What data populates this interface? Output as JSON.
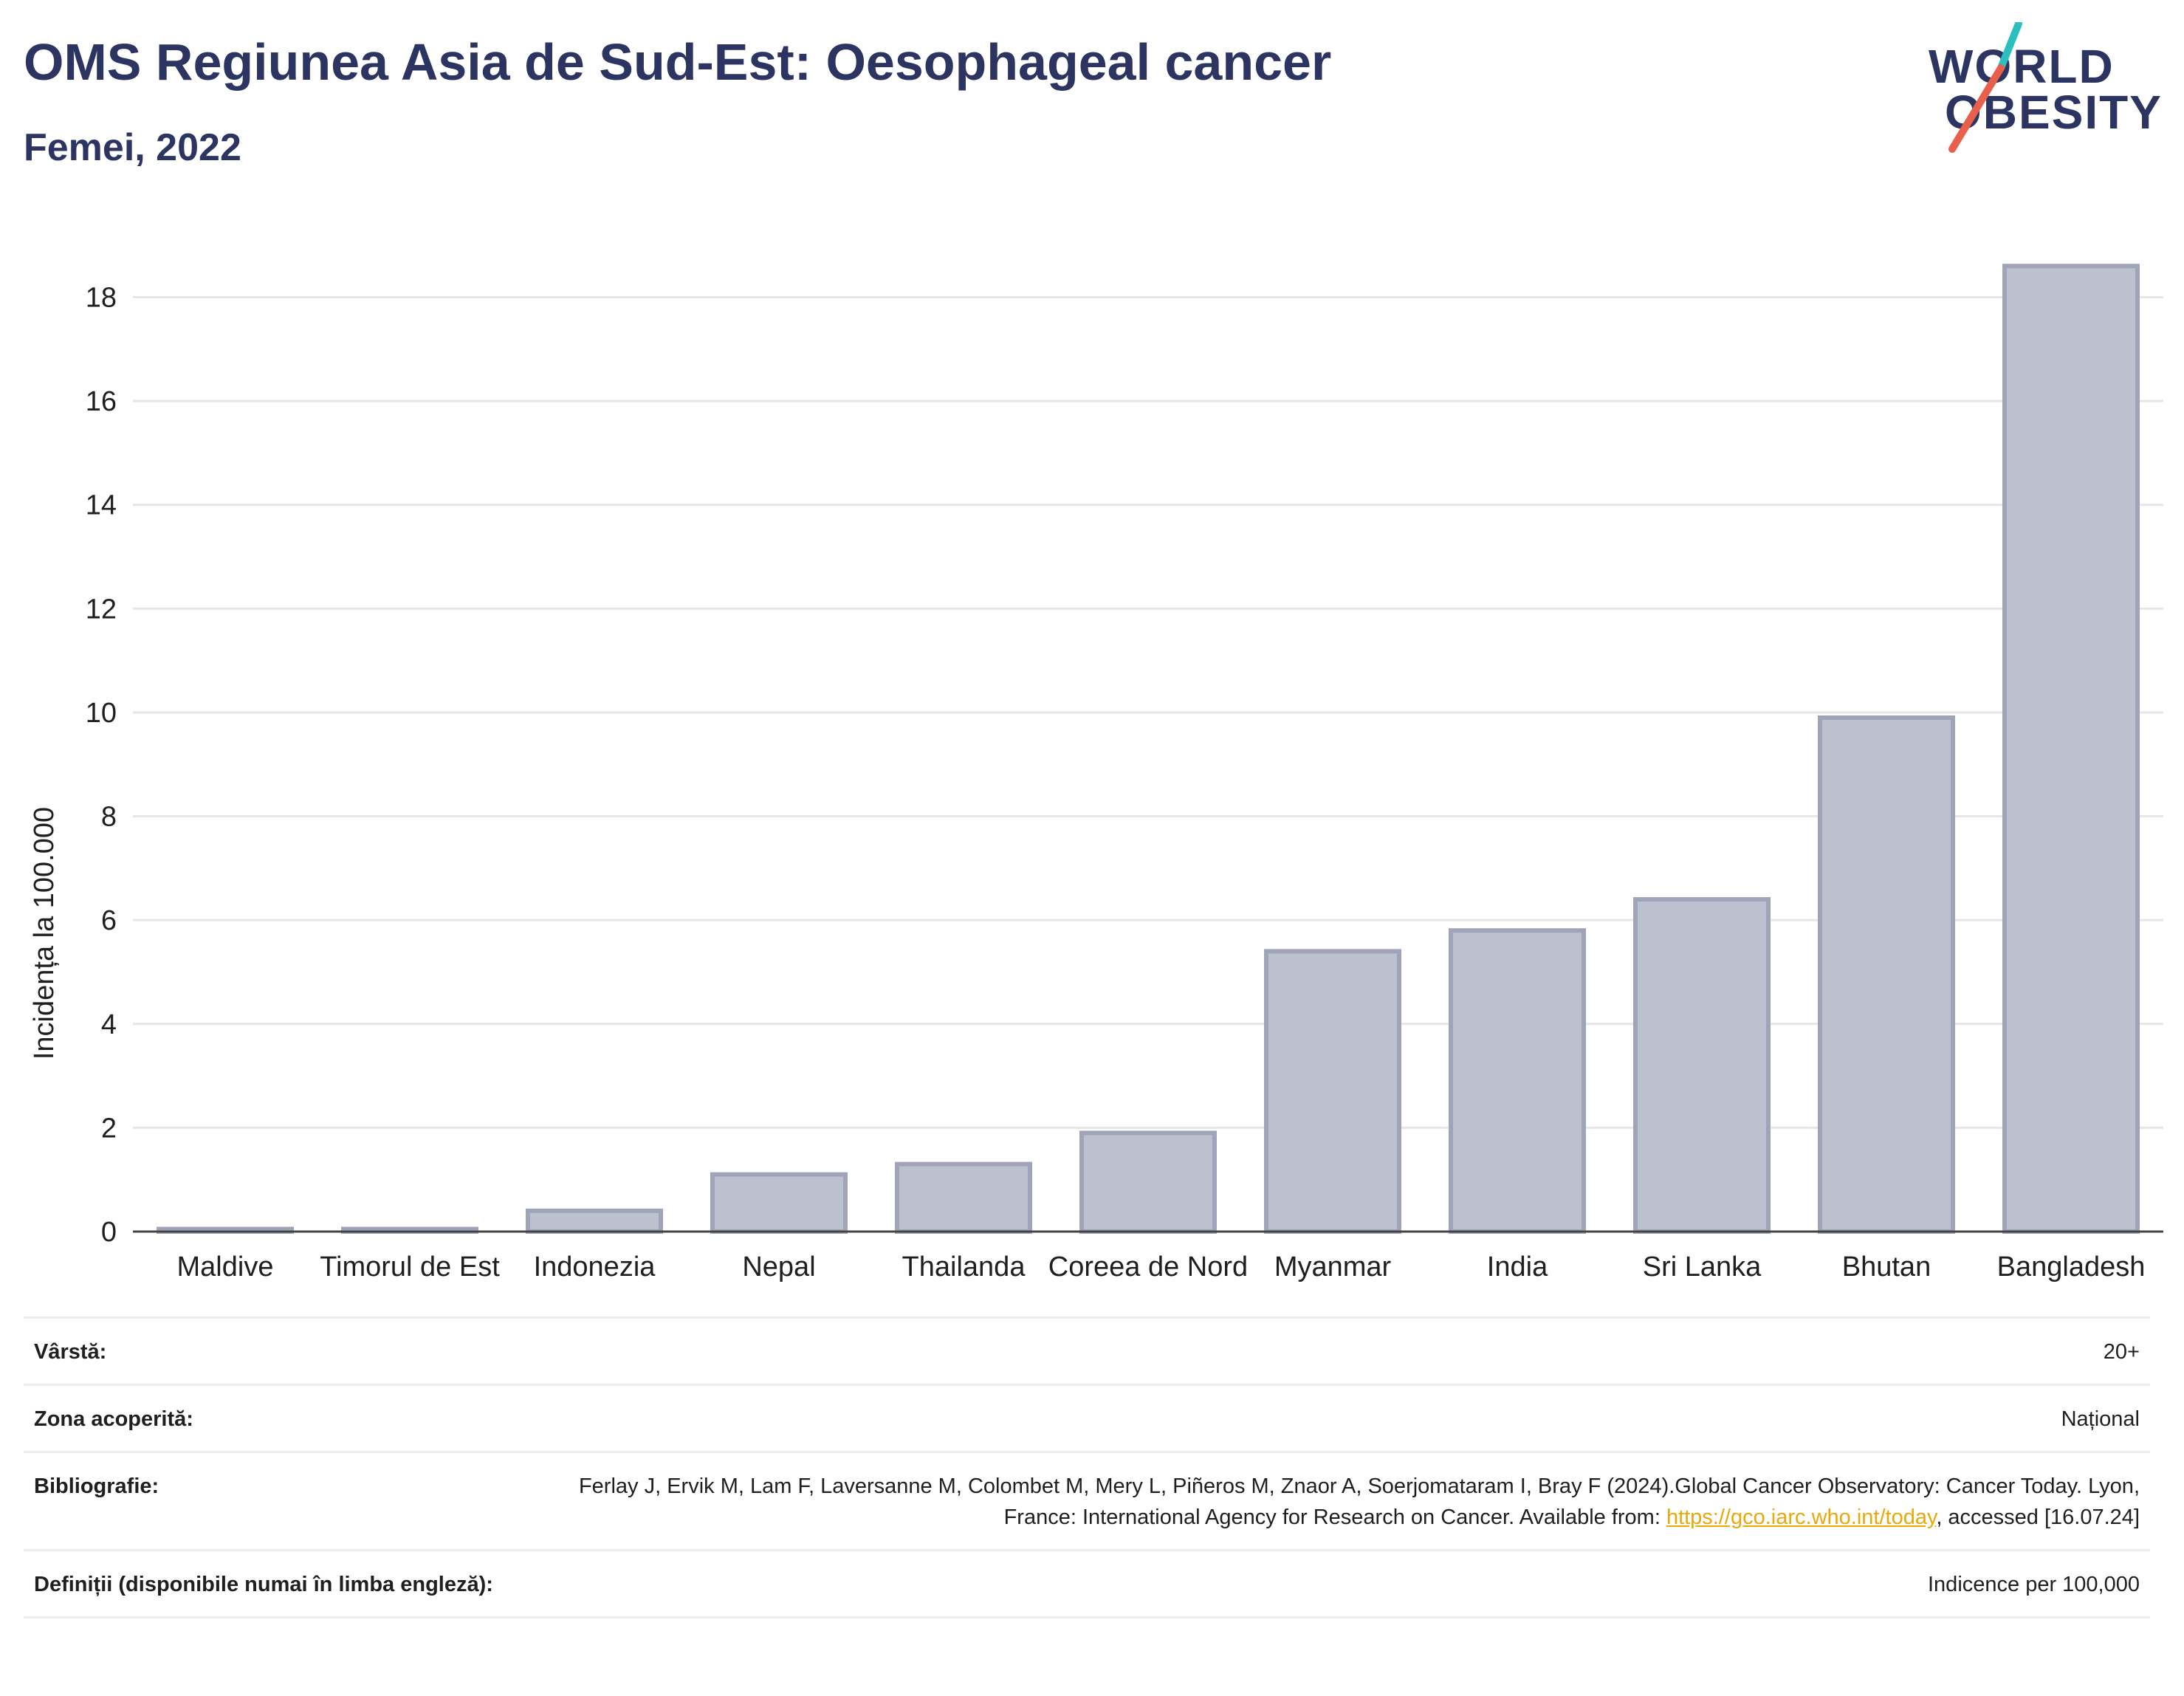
{
  "header": {
    "title": "OMS Regiunea Asia de Sud-Est: Oesophageal cancer",
    "subtitle": "Femei, 2022"
  },
  "logo": {
    "line1": "WORLD",
    "line2": "OBESITY",
    "accent_colors": [
      "#2bbfc0",
      "#e8604c"
    ]
  },
  "colors": {
    "title": "#2c3561",
    "bar_fill": "#bdc0ce",
    "bar_stroke": "#9fa4b9",
    "link": "#e8a90b"
  },
  "chart_data": {
    "type": "bar",
    "categories": [
      "Maldive",
      "Timorul de Est",
      "Indonezia",
      "Nepal",
      "Thailanda",
      "Coreea de Nord",
      "Myanmar",
      "India",
      "Sri Lanka",
      "Bhutan",
      "Bangladesh"
    ],
    "values": [
      0.05,
      0.05,
      0.4,
      1.1,
      1.3,
      1.9,
      5.4,
      5.8,
      6.4,
      9.9,
      18.6
    ],
    "ylabel": "Incidența la 100.000",
    "xlabel": "",
    "ylim": [
      0,
      19.6
    ],
    "yticks": [
      0,
      2,
      4,
      6,
      8,
      10,
      12,
      14,
      16,
      18
    ],
    "grid": true
  },
  "meta": [
    {
      "label": "Vârstă:",
      "value": "20+"
    },
    {
      "label": "Zona acoperită:",
      "value": "Național"
    },
    {
      "label": "Bibliografie:",
      "value_before": "Ferlay J, Ervik M, Lam F, Laversanne M, Colombet M, Mery L, Piñeros M, Znaor A, Soerjomataram I, Bray F (2024).Global Cancer Observatory: Cancer Today. Lyon, France: International Agency for Research on Cancer. Available from: ",
      "link": "https://gco.iarc.who.int/today",
      "value_after": ", accessed [16.07.24]"
    },
    {
      "label": "Definiții (disponibile numai în limba engleză):",
      "value": "Indicence per 100,000"
    }
  ]
}
